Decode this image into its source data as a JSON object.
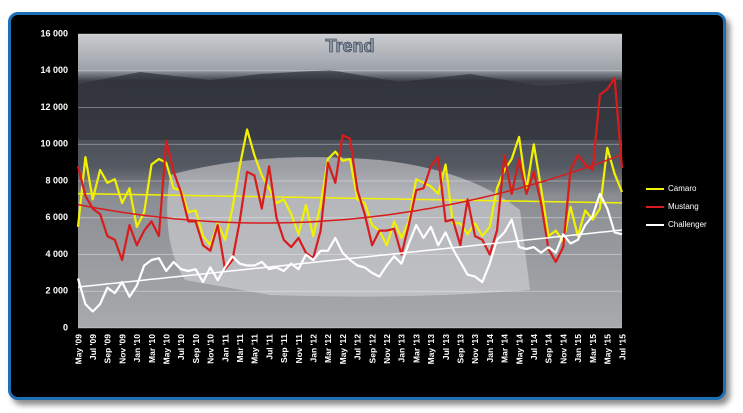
{
  "chart_data": {
    "type": "line",
    "title": "Trend",
    "categories": [
      "May '09",
      null,
      "Jul '09",
      null,
      "Sep '09",
      null,
      "Nov '09",
      null,
      "Jan '10",
      null,
      "Mar '10",
      null,
      "May '10",
      null,
      "Jul '10",
      null,
      "Sep '10",
      null,
      "Nov '10",
      null,
      "Jan '11",
      null,
      "Mar '11",
      null,
      "May '11",
      null,
      "Jul '11",
      null,
      "Sep '11",
      null,
      "Nov '11",
      null,
      "Jan '12",
      null,
      "Mar '12",
      null,
      "May '12",
      null,
      "Jul '12",
      null,
      "Sep '12",
      null,
      "Nov '12",
      null,
      "Jan '13",
      null,
      "Mar '13",
      null,
      "May '13",
      null,
      "Jul '13",
      null,
      "Sep '13",
      null,
      "Nov '13",
      null,
      "Jan '14",
      null,
      "Mar '14",
      null,
      "May '14",
      null,
      "Jul '14",
      null,
      "Sep '14",
      null,
      "Nov '14",
      null,
      "Jan '15",
      null,
      "Mar '15",
      null,
      "May '15",
      null,
      "Jul '15"
    ],
    "series": [
      {
        "name": "Camaro",
        "color": "#f2f200",
        "trendline": "linear",
        "values": [
          5500,
          9300,
          7000,
          8600,
          7900,
          8100,
          6800,
          7600,
          5500,
          6300,
          8900,
          9200,
          9000,
          7600,
          7500,
          6300,
          6400,
          5000,
          4500,
          5700,
          4800,
          6500,
          8800,
          10800,
          9400,
          8300,
          7600,
          6800,
          7000,
          6200,
          5100,
          6700,
          5000,
          6700,
          9200,
          9600,
          9100,
          9200,
          7000,
          6800,
          5600,
          5300,
          4500,
          5800,
          4900,
          5800,
          8100,
          7900,
          7700,
          7300,
          8900,
          5700,
          5700,
          5100,
          5700,
          5000,
          5500,
          7600,
          8600,
          9200,
          10400,
          7500,
          10000,
          7600,
          5000,
          5300,
          4700,
          6600,
          5000,
          6400,
          5900,
          6500,
          9800,
          8400,
          7400
        ]
      },
      {
        "name": "Mustang",
        "color": "#d81c1c",
        "trendline": "poly2",
        "values": [
          8800,
          7200,
          6500,
          6200,
          5000,
          4800,
          3700,
          5600,
          4500,
          5300,
          5800,
          5000,
          10200,
          8500,
          7400,
          5800,
          5800,
          4500,
          4200,
          5600,
          3200,
          3700,
          5800,
          8500,
          8300,
          6500,
          8800,
          6000,
          4800,
          4400,
          4900,
          4100,
          3800,
          5300,
          9000,
          7900,
          10500,
          10300,
          7500,
          6200,
          4500,
          5300,
          5300,
          5400,
          4000,
          5600,
          7500,
          7600,
          8800,
          9300,
          5800,
          5900,
          4500,
          7000,
          5000,
          4800,
          4000,
          5300,
          9400,
          7300,
          9200,
          7300,
          8500,
          6800,
          4300,
          3600,
          4400,
          8600,
          9400,
          8900,
          8600,
          12700,
          13000,
          13600,
          8700
        ]
      },
      {
        "name": "Challenger",
        "color": "#ffffff",
        "trendline": "linear",
        "values": [
          2700,
          1300,
          900,
          1300,
          2200,
          1900,
          2500,
          1700,
          2300,
          3400,
          3700,
          3800,
          3100,
          3600,
          3200,
          3100,
          3200,
          2500,
          3300,
          2600,
          3300,
          3900,
          3500,
          3400,
          3400,
          3600,
          3200,
          3300,
          3100,
          3500,
          3200,
          4000,
          3700,
          4200,
          4200,
          4900,
          4100,
          3700,
          3400,
          3300,
          3000,
          2800,
          3400,
          3900,
          3500,
          4600,
          5600,
          4900,
          5500,
          4500,
          5200,
          4300,
          3600,
          2900,
          2800,
          2500,
          3500,
          4800,
          5200,
          5900,
          4400,
          4300,
          4400,
          4100,
          4400,
          4100,
          5100,
          4600,
          4800,
          5600,
          6100,
          7300,
          6500,
          5200,
          5100
        ]
      }
    ],
    "ylim": [
      0,
      16000
    ],
    "yticks": [
      0,
      {
        "value": 2000,
        "label": "2 000"
      },
      {
        "value": 4000,
        "label": "4 000"
      },
      {
        "value": 6000,
        "label": "6 000"
      },
      {
        "value": 8000,
        "label": "8 000"
      },
      {
        "value": 10000,
        "label": "10 000"
      },
      {
        "value": 12000,
        "label": "12 000"
      },
      {
        "value": 14000,
        "label": "14 000"
      },
      {
        "value": 16000,
        "label": "16 000"
      }
    ],
    "grid": true,
    "legend": "right"
  }
}
